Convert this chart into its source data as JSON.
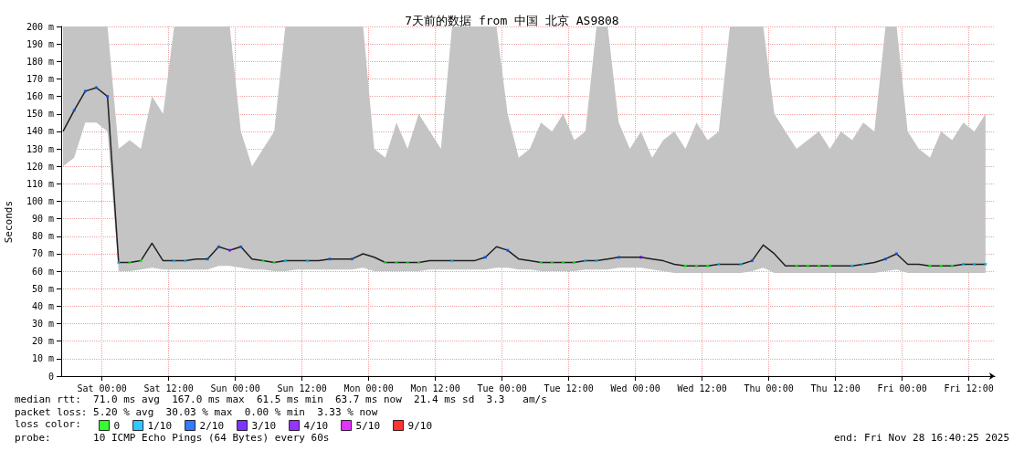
{
  "chart_data": {
    "type": "line",
    "title": "7天前的数据 from 中国 北京 AS9808",
    "ylabel": "Seconds",
    "legend_title": "loss color:",
    "annotations": [
      "median rtt:  71.0 ms avg  167.0 ms max  61.5 ms min  63.7 ms now  21.4 ms sd  3.3   am/s",
      "packet loss: 5.20 % avg  30.03 % max  0.00 % min  3.33 % now",
      "probe:       10 ICMP Echo Pings (64 Bytes) every 60s",
      "end: Fri Nov 28 16:40:25 2025"
    ],
    "x": [
      "2025-11-21T17:00",
      "2025-11-21T19:00",
      "2025-11-21T21:00",
      "2025-11-21T23:00",
      "2025-11-22T01:00",
      "2025-11-22T03:00",
      "2025-11-22T05:00",
      "2025-11-22T07:00",
      "2025-11-22T09:00",
      "2025-11-22T11:00",
      "2025-11-22T13:00",
      "2025-11-22T15:00",
      "2025-11-22T17:00",
      "2025-11-22T19:00",
      "2025-11-22T21:00",
      "2025-11-22T23:00",
      "2025-11-23T01:00",
      "2025-11-23T03:00",
      "2025-11-23T05:00",
      "2025-11-23T07:00",
      "2025-11-23T09:00",
      "2025-11-23T11:00",
      "2025-11-23T13:00",
      "2025-11-23T15:00",
      "2025-11-23T17:00",
      "2025-11-23T19:00",
      "2025-11-23T21:00",
      "2025-11-23T23:00",
      "2025-11-24T01:00",
      "2025-11-24T03:00",
      "2025-11-24T05:00",
      "2025-11-24T07:00",
      "2025-11-24T09:00",
      "2025-11-24T11:00",
      "2025-11-24T13:00",
      "2025-11-24T15:00",
      "2025-11-24T17:00",
      "2025-11-24T19:00",
      "2025-11-24T21:00",
      "2025-11-24T23:00",
      "2025-11-25T01:00",
      "2025-11-25T03:00",
      "2025-11-25T05:00",
      "2025-11-25T07:00",
      "2025-11-25T09:00",
      "2025-11-25T11:00",
      "2025-11-25T13:00",
      "2025-11-25T15:00",
      "2025-11-25T17:00",
      "2025-11-25T19:00",
      "2025-11-25T21:00",
      "2025-11-25T23:00",
      "2025-11-26T01:00",
      "2025-11-26T03:00",
      "2025-11-26T05:00",
      "2025-11-26T07:00",
      "2025-11-26T09:00",
      "2025-11-26T11:00",
      "2025-11-26T13:00",
      "2025-11-26T15:00",
      "2025-11-26T17:00",
      "2025-11-26T19:00",
      "2025-11-26T21:00",
      "2025-11-26T23:00",
      "2025-11-27T01:00",
      "2025-11-27T03:00",
      "2025-11-27T05:00",
      "2025-11-27T07:00",
      "2025-11-27T09:00",
      "2025-11-27T11:00",
      "2025-11-27T13:00",
      "2025-11-27T15:00",
      "2025-11-27T17:00",
      "2025-11-27T19:00",
      "2025-11-27T21:00",
      "2025-11-27T23:00",
      "2025-11-28T01:00",
      "2025-11-28T03:00",
      "2025-11-28T05:00",
      "2025-11-28T07:00",
      "2025-11-28T09:00",
      "2025-11-28T11:00",
      "2025-11-28T13:00",
      "2025-11-28T15:00"
    ],
    "series": [
      {
        "color": "#202020",
        "values": [
          140,
          152,
          163,
          165,
          160,
          65,
          65,
          66,
          76,
          66,
          66,
          66,
          67,
          67,
          74,
          72,
          74,
          67,
          66,
          65,
          66,
          66,
          66,
          66,
          67,
          67,
          67,
          70,
          68,
          65,
          65,
          65,
          65,
          66,
          66,
          66,
          66,
          66,
          68,
          74,
          72,
          67,
          66,
          65,
          65,
          65,
          65,
          66,
          66,
          67,
          68,
          68,
          68,
          67,
          66,
          64,
          63,
          63,
          63,
          64,
          64,
          64,
          66,
          75,
          70,
          63,
          63,
          63,
          63,
          63,
          63,
          63,
          64,
          65,
          67,
          70,
          64,
          64,
          63,
          63,
          63,
          64,
          64,
          64
        ],
        "lower": [
          120,
          125,
          145,
          145,
          140,
          60,
          60,
          61,
          62,
          61,
          61,
          61,
          61,
          61,
          63,
          63,
          62,
          61,
          61,
          60,
          60,
          61,
          61,
          61,
          61,
          61,
          61,
          62,
          60,
          60,
          60,
          60,
          60,
          61,
          61,
          61,
          61,
          61,
          61,
          62,
          62,
          61,
          61,
          60,
          60,
          60,
          60,
          61,
          61,
          61,
          62,
          62,
          62,
          61,
          60,
          59,
          59,
          59,
          59,
          59,
          59,
          59,
          60,
          62,
          59,
          59,
          59,
          59,
          59,
          59,
          59,
          59,
          59,
          59,
          60,
          61,
          59,
          59,
          59,
          59,
          59,
          59,
          59,
          59
        ],
        "upper": [
          200,
          200,
          200,
          200,
          200,
          130,
          135,
          130,
          160,
          150,
          200,
          200,
          200,
          200,
          200,
          200,
          140,
          120,
          130,
          140,
          200,
          200,
          200,
          200,
          200,
          200,
          200,
          200,
          130,
          125,
          145,
          130,
          150,
          140,
          130,
          200,
          200,
          200,
          200,
          200,
          150,
          125,
          130,
          145,
          140,
          150,
          135,
          140,
          200,
          200,
          145,
          130,
          140,
          125,
          135,
          140,
          130,
          145,
          135,
          140,
          200,
          200,
          200,
          200,
          150,
          140,
          130,
          135,
          140,
          130,
          140,
          135,
          145,
          140,
          200,
          200,
          140,
          130,
          125,
          140,
          135,
          145,
          140,
          150
        ]
      },
      {
        "type": "scatter",
        "name": "0",
        "color": "#00ff00",
        "marker": "square",
        "x": [
          "2025-11-22T05:00",
          "2025-11-22T07:00",
          "2025-11-23T05:00",
          "2025-11-23T07:00",
          "2025-11-24T03:00",
          "2025-11-24T05:00",
          "2025-11-24T07:00",
          "2025-11-24T09:00",
          "2025-11-25T07:00",
          "2025-11-25T09:00",
          "2025-11-25T11:00",
          "2025-11-25T13:00",
          "2025-11-26T09:00",
          "2025-11-26T11:00",
          "2025-11-26T13:00",
          "2025-11-27T05:00",
          "2025-11-27T07:00",
          "2025-11-27T09:00",
          "2025-11-27T11:00",
          "2025-11-28T05:00",
          "2025-11-28T07:00",
          "2025-11-28T09:00"
        ],
        "values": [
          65,
          66,
          66,
          65,
          65,
          65,
          65,
          65,
          65,
          65,
          65,
          65,
          63,
          63,
          63,
          63,
          63,
          63,
          63,
          63,
          63,
          63
        ]
      },
      {
        "type": "scatter",
        "name": "1/10",
        "color": "#00b8ff",
        "marker": "square",
        "x": [
          "2025-11-22T03:00",
          "2025-11-22T13:00",
          "2025-11-22T15:00",
          "2025-11-23T09:00",
          "2025-11-23T13:00",
          "2025-11-24T15:00",
          "2025-11-25T15:00",
          "2025-11-25T17:00",
          "2025-11-26T15:00",
          "2025-11-26T19:00",
          "2025-11-27T15:00",
          "2025-11-27T17:00",
          "2025-11-28T11:00",
          "2025-11-28T13:00",
          "2025-11-28T15:00"
        ],
        "values": [
          65,
          66,
          66,
          66,
          66,
          66,
          66,
          66,
          64,
          64,
          63,
          64,
          64,
          64,
          64
        ]
      },
      {
        "type": "scatter",
        "name": "2/10",
        "color": "#0059ff",
        "marker": "square",
        "x": [
          "2025-11-21T19:00",
          "2025-11-21T21:00",
          "2025-11-21T23:00",
          "2025-11-22T01:00",
          "2025-11-22T19:00",
          "2025-11-22T21:00",
          "2025-11-23T01:00",
          "2025-11-23T17:00",
          "2025-11-23T21:00",
          "2025-11-24T21:00",
          "2025-11-25T01:00",
          "2025-11-25T21:00",
          "2025-11-26T21:00",
          "2025-11-27T21:00",
          "2025-11-27T23:00"
        ],
        "values": [
          152,
          163,
          165,
          160,
          67,
          74,
          74,
          67,
          67,
          68,
          72,
          68,
          66,
          67,
          70
        ]
      },
      {
        "type": "scatter",
        "name": "3/10",
        "color": "#5e00ff",
        "marker": "square",
        "x": [
          "2025-11-26T01:00"
        ],
        "values": [
          68
        ]
      },
      {
        "type": "scatter",
        "name": "4/10",
        "color": "#7e00ff",
        "marker": "square",
        "x": [
          "2025-11-22T23:00"
        ],
        "values": [
          72
        ]
      },
      {
        "type": "scatter",
        "name": "5/10",
        "color": "#dd00ff",
        "marker": "square",
        "values": [
          null,
          null,
          null,
          null,
          null,
          null,
          null,
          null,
          null,
          null,
          null,
          null,
          null,
          null,
          null,
          null,
          null,
          null,
          null,
          null,
          null,
          null,
          null,
          null,
          null,
          null,
          null,
          null,
          null,
          null,
          null,
          null,
          null,
          null,
          null,
          null,
          null,
          null,
          null,
          null,
          null,
          null,
          null,
          null,
          null,
          null,
          null,
          null,
          null,
          null,
          null,
          null,
          null,
          null,
          null,
          null,
          null,
          null,
          null,
          null,
          null,
          null,
          null,
          null,
          null,
          null,
          null,
          null,
          null,
          null,
          null,
          null,
          null,
          null,
          null,
          null,
          null,
          null,
          null,
          null,
          null,
          null,
          null,
          null
        ]
      },
      {
        "type": "scatter",
        "name": "9/10",
        "color": "#ff0000",
        "marker": "square",
        "values": [
          null,
          null,
          null,
          null,
          null,
          null,
          null,
          null,
          null,
          null,
          null,
          null,
          null,
          null,
          null,
          null,
          null,
          null,
          null,
          null,
          null,
          null,
          null,
          null,
          null,
          null,
          null,
          null,
          null,
          null,
          null,
          null,
          null,
          null,
          null,
          null,
          null,
          null,
          null,
          null,
          null,
          null,
          null,
          null,
          null,
          null,
          null,
          null,
          null,
          null,
          null,
          null,
          null,
          null,
          null,
          null,
          null,
          null,
          null,
          null,
          null,
          null,
          null,
          null,
          null,
          null,
          null,
          null,
          null,
          null,
          null,
          null,
          null,
          null,
          null,
          null,
          null,
          null,
          null,
          null,
          null,
          null,
          null,
          null
        ]
      }
    ],
    "xlim": [
      "2025-11-21T16:40",
      "2025-11-28T16:40"
    ],
    "xticks": [
      {
        "value": "2025-11-22T00:00",
        "label": "Sat 00:00"
      },
      {
        "value": "2025-11-22T12:00",
        "label": "Sat 12:00"
      },
      {
        "value": "2025-11-23T00:00",
        "label": "Sun 00:00"
      },
      {
        "value": "2025-11-23T12:00",
        "label": "Sun 12:00"
      },
      {
        "value": "2025-11-24T00:00",
        "label": "Mon 00:00"
      },
      {
        "value": "2025-11-24T12:00",
        "label": "Mon 12:00"
      },
      {
        "value": "2025-11-25T00:00",
        "label": "Tue 00:00"
      },
      {
        "value": "2025-11-25T12:00",
        "label": "Tue 12:00"
      },
      {
        "value": "2025-11-26T00:00",
        "label": "Wed 00:00"
      },
      {
        "value": "2025-11-26T12:00",
        "label": "Wed 12:00"
      },
      {
        "value": "2025-11-27T00:00",
        "label": "Thu 00:00"
      },
      {
        "value": "2025-11-27T12:00",
        "label": "Thu 12:00"
      },
      {
        "value": "2025-11-28T00:00",
        "label": "Fri 00:00"
      },
      {
        "value": "2025-11-28T12:00",
        "label": "Fri 12:00"
      }
    ],
    "ylim": [
      0,
      200
    ],
    "yticks": [
      0,
      {
        "value": 10,
        "label": "10 m"
      },
      {
        "value": 20,
        "label": "20 m"
      },
      {
        "value": 30,
        "label": "30 m"
      },
      {
        "value": 40,
        "label": "40 m"
      },
      {
        "value": 50,
        "label": "50 m"
      },
      {
        "value": 60,
        "label": "60 m"
      },
      {
        "value": 70,
        "label": "70 m"
      },
      {
        "value": 80,
        "label": "80 m"
      },
      {
        "value": 90,
        "label": "90 m"
      },
      {
        "value": 100,
        "label": "100 m"
      },
      {
        "value": 110,
        "label": "110 m"
      },
      {
        "value": 120,
        "label": "120 m"
      },
      {
        "value": 130,
        "label": "130 m"
      },
      {
        "value": 140,
        "label": "140 m"
      },
      {
        "value": 150,
        "label": "150 m"
      },
      {
        "value": 160,
        "label": "160 m"
      },
      {
        "value": 170,
        "label": "170 m"
      },
      {
        "value": 180,
        "label": "180 m"
      },
      {
        "value": 190,
        "label": "190 m"
      },
      {
        "value": 200,
        "label": "200 m"
      }
    ],
    "grid": true,
    "legend": "bottom left"
  }
}
